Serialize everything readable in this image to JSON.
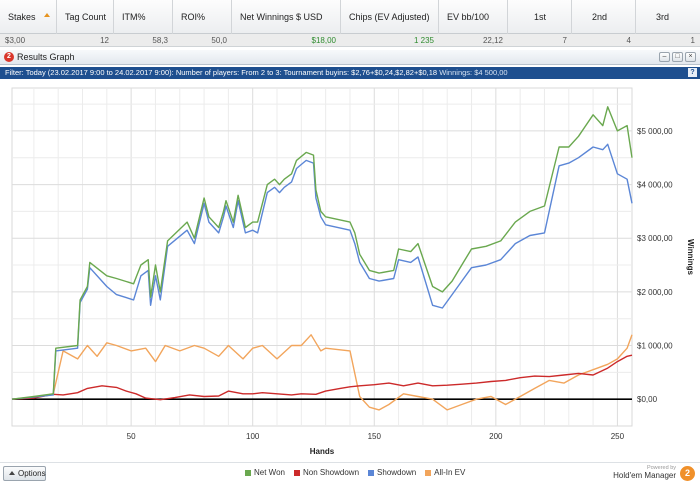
{
  "table": {
    "columns": [
      {
        "label": "Stakes",
        "sorted": true
      },
      {
        "label": "Tag Count"
      },
      {
        "label": "ITM%"
      },
      {
        "label": "ROI%"
      },
      {
        "label": "Net Winnings $ USD"
      },
      {
        "label": "Chips (EV Adjusted)"
      },
      {
        "label": "EV bb/100"
      },
      {
        "label": "1st"
      },
      {
        "label": "2nd"
      },
      {
        "label": "3rd"
      }
    ],
    "row": [
      "$3,00",
      "12",
      "58,3",
      "50,0",
      "$18,00",
      "1 235",
      "22,12",
      "7",
      "4",
      "1"
    ]
  },
  "panel": {
    "icon_glyph": "2",
    "title": "Results Graph",
    "btn_min": "–",
    "btn_max": "□",
    "btn_close": "×"
  },
  "filter": {
    "text": "Filter: Today (23.02.2017 9:00 to 24.02.2017 9:00): Number of players: From 2 to 3: Tournament buyins: $2,76+$0,24,$2,82+$0,18",
    "winnings": "Winnings: $4 500,00",
    "help": "?"
  },
  "chart_data": {
    "type": "line",
    "xlabel": "Hands",
    "ylabel": "Winnings",
    "xlim": [
      1,
      256
    ],
    "ylim": [
      -500,
      5800
    ],
    "xticks": [
      50,
      100,
      150,
      200,
      250
    ],
    "yticks": [
      0,
      1000,
      2000,
      3000,
      4000,
      5000
    ],
    "ytick_labels": [
      "$0,00",
      "$1 000,00",
      "$2 000,00",
      "$3 000,00",
      "$4 000,00",
      "$5 000,00"
    ],
    "grid": true,
    "legend_position": "bottom",
    "series": [
      {
        "name": "Net Won",
        "color": "#6aa84f",
        "x": [
          1,
          10,
          18,
          19,
          28,
          29,
          32,
          33,
          40,
          44,
          51,
          54,
          57,
          58,
          60,
          62,
          65,
          73,
          76,
          80,
          82,
          86,
          88,
          89,
          92,
          94,
          97,
          100,
          102,
          106,
          109,
          111,
          113,
          116,
          118,
          122,
          125,
          126,
          128,
          130,
          140,
          142,
          144,
          148,
          152,
          158,
          160,
          165,
          168,
          174,
          178,
          182,
          186,
          190,
          196,
          202,
          208,
          214,
          220,
          226,
          230,
          234,
          240,
          244,
          246,
          250,
          254,
          256
        ],
        "y": [
          0,
          50,
          100,
          950,
          1000,
          1850,
          2100,
          2550,
          2300,
          2250,
          2150,
          2500,
          2600,
          1900,
          2500,
          2000,
          2950,
          3300,
          3000,
          3750,
          3400,
          3200,
          3500,
          3700,
          3300,
          3800,
          3200,
          3300,
          3300,
          4000,
          4100,
          4000,
          4100,
          4200,
          4450,
          4600,
          4550,
          3900,
          3500,
          3400,
          3300,
          3100,
          2700,
          2400,
          2350,
          2400,
          2800,
          2750,
          2900,
          2100,
          2000,
          2200,
          2500,
          2800,
          2850,
          2950,
          3300,
          3500,
          3600,
          4700,
          4700,
          4900,
          5300,
          5100,
          5450,
          5000,
          5100,
          4500
        ]
      },
      {
        "name": "Non Showdown",
        "color": "#cc2a2a",
        "x": [
          1,
          10,
          18,
          22,
          28,
          32,
          38,
          44,
          48,
          52,
          56,
          62,
          68,
          74,
          80,
          86,
          90,
          96,
          100,
          104,
          110,
          116,
          120,
          126,
          130,
          136,
          140,
          144,
          150,
          156,
          162,
          168,
          174,
          180,
          186,
          192,
          198,
          204,
          210,
          216,
          222,
          228,
          234,
          240,
          246,
          250,
          254,
          256
        ],
        "y": [
          0,
          20,
          90,
          80,
          120,
          200,
          250,
          220,
          150,
          100,
          20,
          -10,
          30,
          80,
          50,
          60,
          150,
          100,
          100,
          120,
          100,
          80,
          100,
          90,
          150,
          200,
          230,
          250,
          270,
          300,
          250,
          300,
          250,
          260,
          280,
          300,
          330,
          350,
          400,
          430,
          420,
          450,
          480,
          450,
          580,
          700,
          800,
          820
        ]
      },
      {
        "name": "Showdown",
        "color": "#5b86d6",
        "x": [
          1,
          10,
          18,
          19,
          28,
          29,
          32,
          33,
          40,
          44,
          51,
          54,
          57,
          58,
          60,
          62,
          65,
          73,
          76,
          80,
          82,
          86,
          88,
          89,
          92,
          94,
          97,
          100,
          102,
          106,
          109,
          111,
          113,
          116,
          118,
          122,
          125,
          126,
          128,
          130,
          140,
          142,
          144,
          148,
          152,
          158,
          160,
          165,
          168,
          174,
          178,
          182,
          186,
          190,
          196,
          202,
          208,
          214,
          220,
          226,
          230,
          234,
          240,
          244,
          246,
          250,
          254,
          256
        ],
        "y": [
          0,
          40,
          80,
          900,
          950,
          1800,
          2050,
          2450,
          2100,
          1950,
          1850,
          2300,
          2400,
          1750,
          2300,
          1850,
          2850,
          3150,
          2900,
          3650,
          3300,
          3100,
          3400,
          3600,
          3200,
          3700,
          3100,
          3150,
          3100,
          3850,
          3950,
          3850,
          3950,
          4050,
          4300,
          4450,
          4400,
          3750,
          3400,
          3250,
          3150,
          2900,
          2550,
          2250,
          2200,
          2250,
          2600,
          2550,
          2650,
          1750,
          1700,
          1950,
          2200,
          2450,
          2500,
          2600,
          2900,
          3050,
          3100,
          4350,
          4400,
          4500,
          4700,
          4650,
          4750,
          4200,
          4100,
          3650
        ]
      },
      {
        "name": "All-In EV",
        "color": "#f2a55c",
        "x": [
          1,
          10,
          18,
          20,
          22,
          28,
          32,
          36,
          40,
          44,
          50,
          56,
          60,
          64,
          70,
          76,
          80,
          86,
          90,
          96,
          100,
          104,
          110,
          116,
          120,
          124,
          126,
          128,
          130,
          140,
          144,
          148,
          152,
          156,
          162,
          168,
          174,
          180,
          186,
          192,
          198,
          204,
          210,
          216,
          222,
          228,
          234,
          240,
          246,
          250,
          254,
          256
        ],
        "y": [
          0,
          30,
          100,
          500,
          900,
          750,
          1000,
          800,
          1050,
          1000,
          900,
          950,
          700,
          1000,
          900,
          1000,
          950,
          800,
          1000,
          750,
          950,
          1000,
          750,
          1000,
          1000,
          1200,
          1050,
          900,
          950,
          900,
          50,
          -150,
          -200,
          -100,
          100,
          50,
          0,
          -200,
          -100,
          0,
          50,
          -100,
          50,
          200,
          350,
          300,
          450,
          550,
          650,
          750,
          950,
          1200
        ]
      }
    ],
    "zero_line_color": "#000000"
  },
  "footer": {
    "options_label": "Options",
    "powered_by": "Powered by",
    "brand": "Hold'em Manager",
    "logo_glyph": "2"
  }
}
